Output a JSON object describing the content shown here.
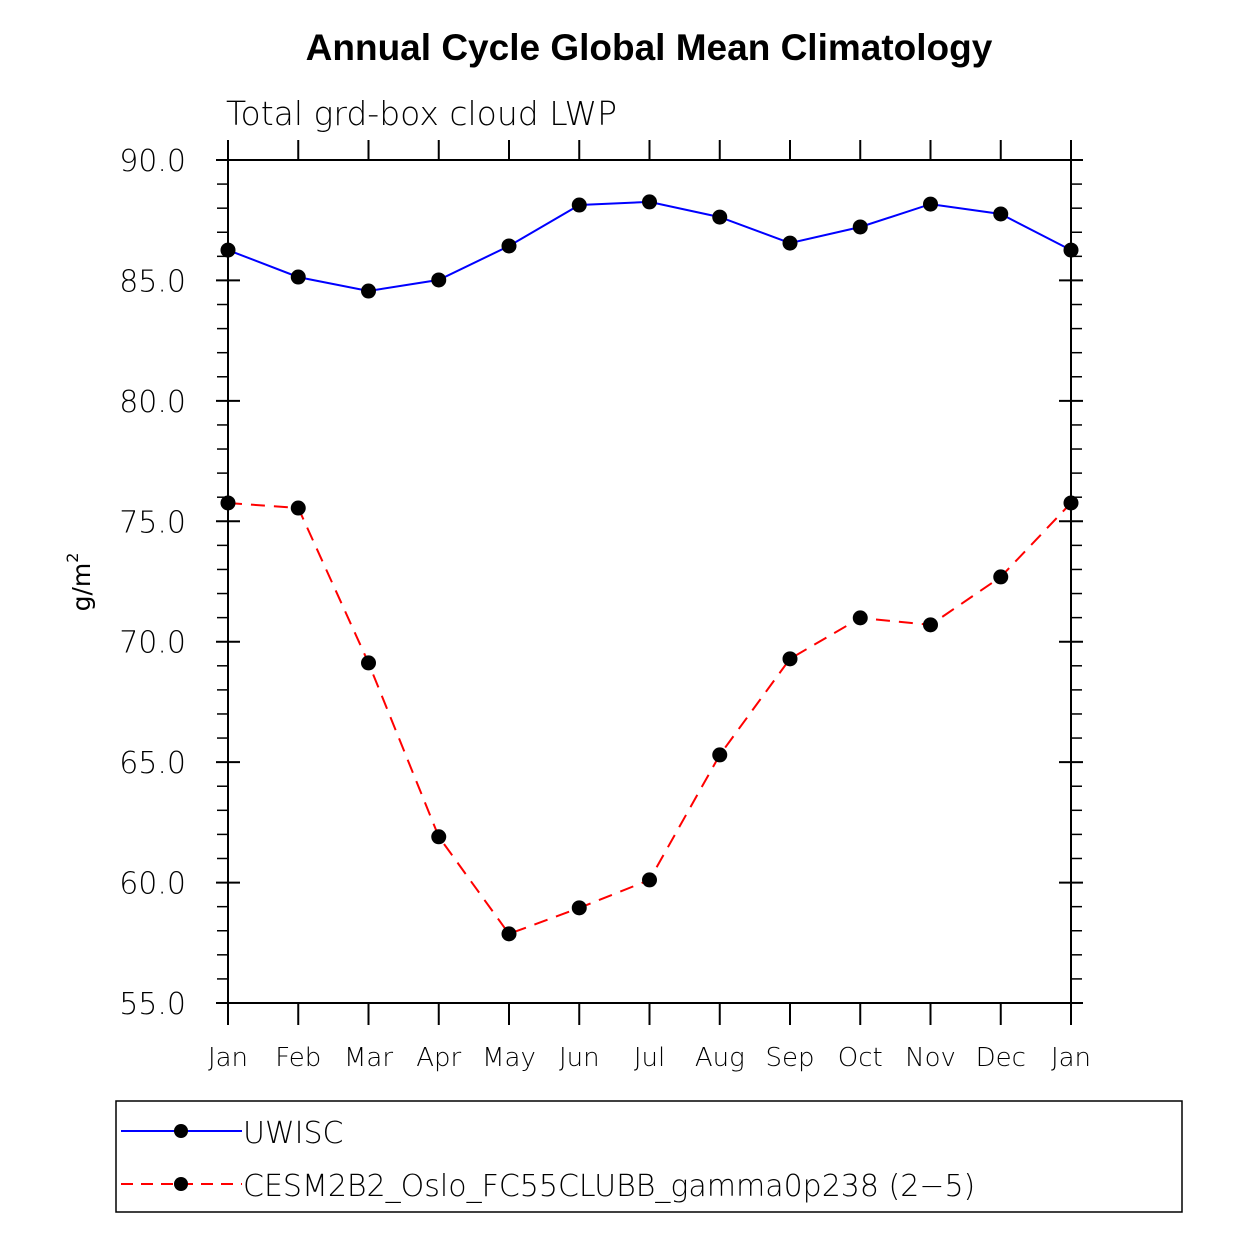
{
  "chart_data": {
    "type": "line",
    "title": "Annual Cycle Global Mean Climatology",
    "subtitle": "Total grd-box cloud LWP",
    "xlabel": "",
    "ylabel": "g/m",
    "ylabel_superscript": "2",
    "categories": [
      "Jan",
      "Feb",
      "Mar",
      "Apr",
      "May",
      "Jun",
      "Jul",
      "Aug",
      "Sep",
      "Oct",
      "Nov",
      "Dec",
      "Jan"
    ],
    "ylim": [
      55.0,
      90.0
    ],
    "yticks": [
      55.0,
      60.0,
      65.0,
      70.0,
      75.0,
      80.0,
      85.0,
      90.0
    ],
    "ytick_labels": [
      "55.0",
      "60.0",
      "65.0",
      "70.0",
      "75.0",
      "80.0",
      "85.0",
      "90.0"
    ],
    "minor_ytick_step": 1.0,
    "grid": false,
    "legend_position": "bottom",
    "series": [
      {
        "name": "UWISC",
        "color": "#0000ff",
        "line_style": "solid",
        "marker": "filled-circle",
        "marker_color": "#000000",
        "values": [
          86.26,
          85.14,
          84.56,
          85.02,
          86.43,
          88.13,
          88.26,
          87.63,
          86.55,
          87.22,
          88.17,
          87.76,
          86.26
        ]
      },
      {
        "name": "CESM2B2_Oslo_FC55CLUBB_gamma0p238 (2-5)",
        "color": "#ff0000",
        "line_style": "dashed",
        "marker": "filled-circle",
        "marker_color": "#000000",
        "values": [
          75.76,
          75.55,
          69.12,
          61.9,
          57.87,
          58.95,
          60.11,
          65.3,
          69.29,
          70.99,
          70.7,
          72.69,
          75.76
        ]
      }
    ]
  },
  "legend": {
    "items": [
      {
        "label": "UWISC"
      },
      {
        "label": "CESM2B2_Oslo_FC55CLUBB_gamma0p238 (2−5)"
      }
    ]
  }
}
